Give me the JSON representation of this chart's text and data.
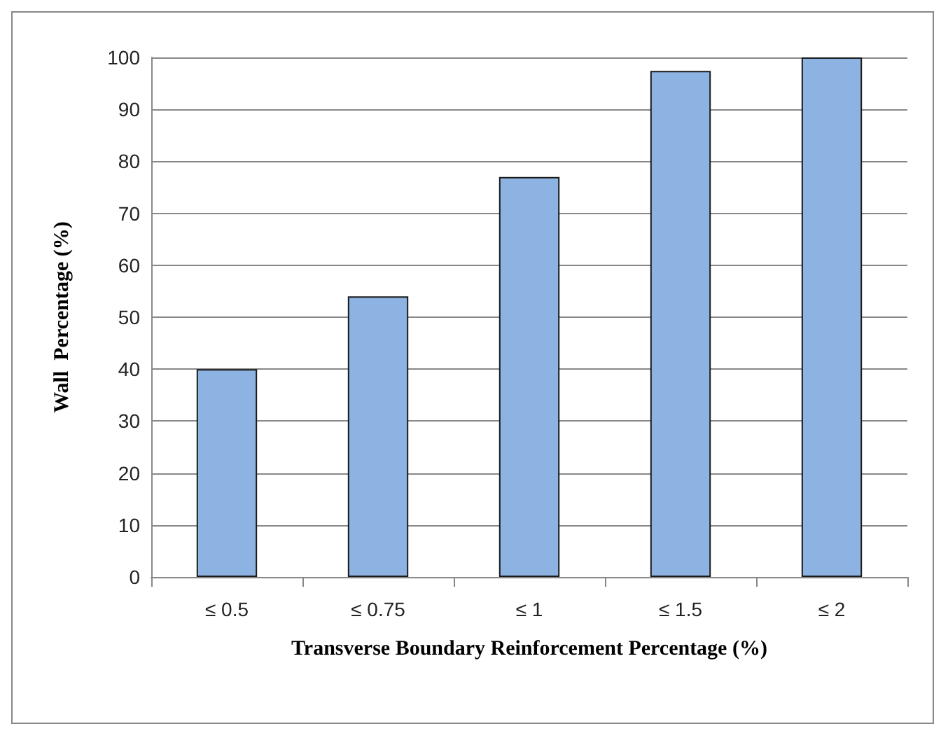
{
  "chart_data": {
    "type": "bar",
    "xlabel": "Transverse Boundary Reinforcement Percentage (%)",
    "ylabel": "Wall  Percentage (%)",
    "categories": [
      "≤ 0.5",
      "≤ 0.75",
      "≤ 1",
      "≤ 1.5",
      "≤ 2"
    ],
    "values": [
      40,
      54,
      77,
      97.4,
      100
    ],
    "color": "#8db3e2",
    "ylim": [
      0,
      100
    ],
    "yticks": [
      0,
      10,
      20,
      30,
      40,
      50,
      60,
      70,
      80,
      90,
      100
    ],
    "grid": "y"
  }
}
